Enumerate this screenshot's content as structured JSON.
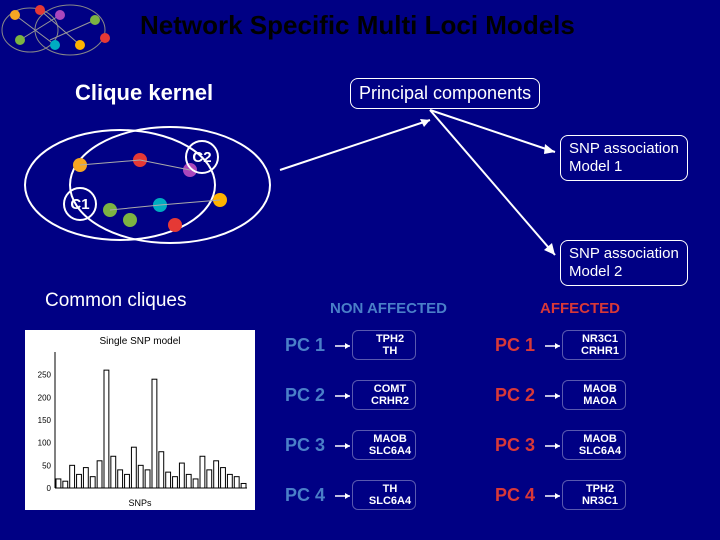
{
  "title": "Network Specific Multi Loci Models",
  "title_color": "#000000",
  "section_left": "Clique kernel",
  "section_right": "Principal components",
  "c1_label": "C1",
  "c2_label": "C2",
  "common_cliques": "Common cliques",
  "model1_line1": "SNP association",
  "model1_line2": "Model 1",
  "model2_line1": "SNP association",
  "model2_line2": "Model 2",
  "non_affected": "NON AFFECTED",
  "affected": "AFFECTED",
  "non_affected_color": "#4a7fc8",
  "affected_color": "#d83838",
  "pc_labels": [
    "PC 1",
    "PC 2",
    "PC 3",
    "PC 4"
  ],
  "na_genes": [
    [
      "TPH2",
      "TH"
    ],
    [
      "COMT",
      "CRHR2"
    ],
    [
      "MAOB",
      "SLC6A4"
    ],
    [
      "TH",
      "SLC6A4"
    ]
  ],
  "af_genes": [
    [
      "NR3C1",
      "CRHR1"
    ],
    [
      "MAOB",
      "MAOA"
    ],
    [
      "MAOB",
      "SLC6A4"
    ],
    [
      "TPH2",
      "NR3C1"
    ]
  ],
  "plot": {
    "bg": "#ffffff",
    "title": "Single SNP model",
    "bars": [
      20,
      15,
      50,
      30,
      45,
      25,
      60,
      260,
      70,
      40,
      30,
      90,
      50,
      40,
      240,
      80,
      35,
      25,
      55,
      30,
      20,
      70,
      40,
      60,
      45,
      30,
      25,
      10
    ],
    "ymax": 300
  },
  "network_colors": [
    "#f5a623",
    "#7cb342",
    "#e53935",
    "#00acc1",
    "#ab47bc",
    "#ffb300"
  ],
  "ellipse_stroke": "#ffffff",
  "c_circle_stroke": "#ffffff",
  "clique_node_colors": [
    "#f5a623",
    "#7cb342",
    "#e53935",
    "#00acc1",
    "#ab47bc",
    "#ffb300",
    "#7cb342",
    "#e53935"
  ]
}
